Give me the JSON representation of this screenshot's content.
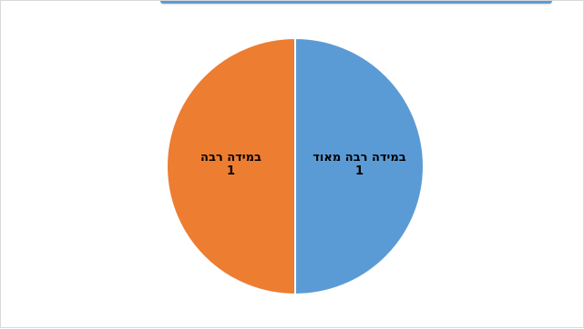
{
  "chart_data": {
    "type": "pie",
    "title": "",
    "categories": [
      "במידה רבה מאוד",
      "במידה רבה"
    ],
    "values": [
      1,
      1
    ],
    "colors": [
      "#5b9bd5",
      "#ed7d31"
    ],
    "legend": "none",
    "data_labels": true
  },
  "colors": {
    "top_accent": "#5b9bd5",
    "slice_border": "#ffffff"
  }
}
